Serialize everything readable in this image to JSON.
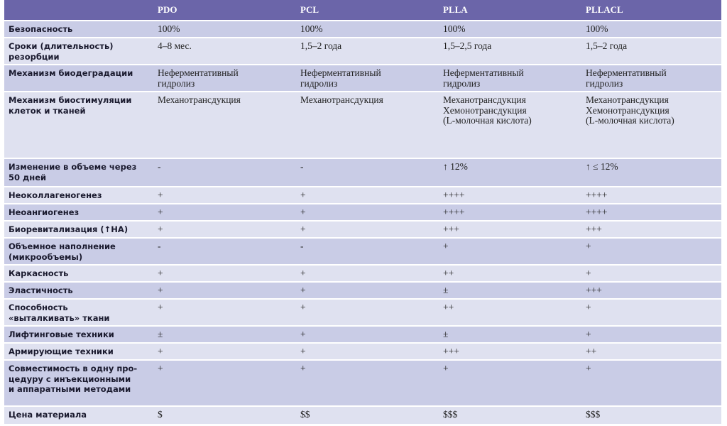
{
  "table": {
    "columns": [
      "PDO",
      "PCL",
      "PLLA",
      "PLLACL"
    ],
    "rows": [
      {
        "label": "Безопасность",
        "cells": [
          "100%",
          "100%",
          "100%",
          "100%"
        ]
      },
      {
        "label": "Сроки (длительность)\nрезорбции",
        "cells": [
          "4–8 мес.",
          "1,5–2 года",
          "1,5–2,5 года",
          "1,5–2 года"
        ]
      },
      {
        "label": "Механизм биодеградации",
        "cells": [
          "Неферментативный\nгидролиз",
          "Неферментативный\nгидролиз",
          "Неферментативный\nгидролиз",
          "Неферментативный\nгидролиз"
        ]
      },
      {
        "label": "Механизм биостимуляции\nклеток и тканей",
        "cells": [
          "Механотрансдукция",
          "Механотрансдукция",
          "Механотрансдукция\nХемонотрансдукция\n(L-молочная кислота)",
          "Механотрансдукция\nХемонотрансдукция\n(L-молочная кислота)"
        ]
      },
      {
        "label": "Изменение в объеме через\n50 дней",
        "cells": [
          "-",
          "-",
          "↑ 12%",
          "↑ ≤ 12%"
        ]
      },
      {
        "label": "Неоколлагеногенез",
        "cells": [
          "+",
          "+",
          "++++",
          "++++"
        ]
      },
      {
        "label": "Неоангиогенез",
        "cells": [
          "+",
          "+",
          "++++",
          "++++"
        ]
      },
      {
        "label": "Биоревитализация (↑HA)",
        "cells": [
          "+",
          "+",
          "+++",
          "+++"
        ]
      },
      {
        "label": "Объемное наполнение\n(микрообъемы)",
        "cells": [
          "-",
          "-",
          "+",
          "+"
        ]
      },
      {
        "label": "Каркасность",
        "cells": [
          "+",
          "+",
          "++",
          "+"
        ]
      },
      {
        "label": "Эластичность",
        "cells": [
          "+",
          "+",
          "±",
          "+++"
        ]
      },
      {
        "label": "Способность\n«выталкивать» ткани",
        "cells": [
          "+",
          "+",
          "++",
          "+"
        ]
      },
      {
        "label": "Лифтинговые техники",
        "cells": [
          "±",
          "+",
          "±",
          "+"
        ]
      },
      {
        "label": "Армирующие техники",
        "cells": [
          "+",
          "+",
          "+++",
          "++"
        ]
      },
      {
        "label": "Совместимость в одну про-\nцедуру с инъекционными\nи аппаратными методами",
        "cells": [
          "+",
          "+",
          "+",
          "+"
        ]
      },
      {
        "label": "Цена материала",
        "cells": [
          "$",
          "$$",
          "$$$",
          "$$$"
        ]
      }
    ]
  }
}
